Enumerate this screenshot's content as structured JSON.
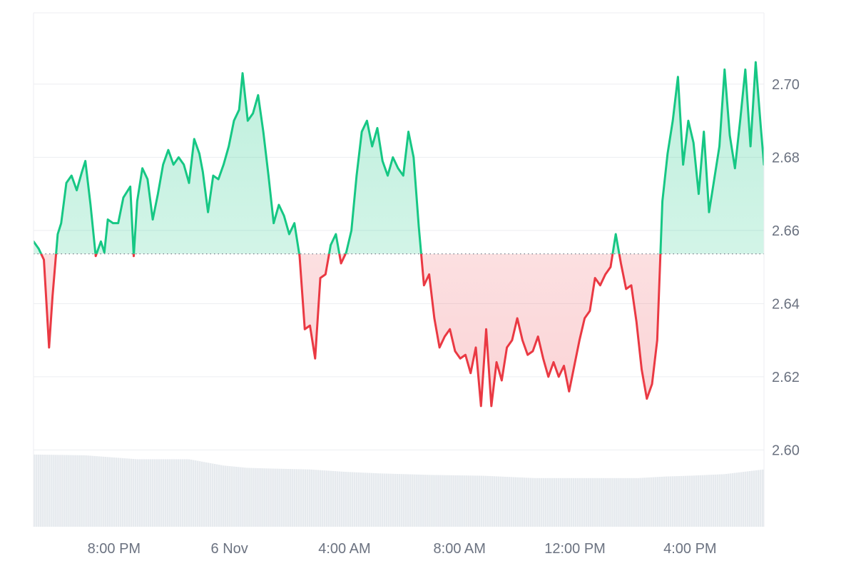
{
  "colors": {
    "up_line": "#16c784",
    "up_fill": "#16c784",
    "down_line": "#ea3943",
    "down_fill": "#ea3943",
    "baseline": "#6b7280",
    "grid": "#eceef1",
    "volume": "#e6eaee",
    "axis_text": "#6b7280"
  },
  "chart_data": {
    "type": "area",
    "grid": true,
    "baseline": 2.6536,
    "ylim": [
      2.579,
      2.7195
    ],
    "y_ticks": [
      "2.60",
      "2.62",
      "2.64",
      "2.66",
      "2.68",
      "2.70"
    ],
    "x_ticks": [
      "8:00 PM",
      "6 Nov",
      "4:00 AM",
      "8:00 AM",
      "12:00 PM",
      "4:00 PM"
    ],
    "x_tick_positions": [
      2.33,
      5.67,
      9,
      12.33,
      15.67,
      19
    ],
    "x_range": [
      0,
      21.14
    ],
    "price": {
      "x": [
        0,
        0.15,
        0.3,
        0.45,
        0.55,
        0.7,
        0.8,
        0.95,
        1.1,
        1.25,
        1.4,
        1.5,
        1.65,
        1.8,
        1.95,
        2.05,
        2.15,
        2.3,
        2.45,
        2.6,
        2.8,
        2.9,
        3.0,
        3.15,
        3.3,
        3.45,
        3.6,
        3.75,
        3.9,
        4.05,
        4.2,
        4.35,
        4.5,
        4.65,
        4.8,
        4.9,
        5.05,
        5.2,
        5.35,
        5.5,
        5.65,
        5.8,
        5.95,
        6.05,
        6.2,
        6.35,
        6.5,
        6.65,
        6.8,
        6.95,
        7.1,
        7.25,
        7.4,
        7.55,
        7.7,
        7.85,
        8.0,
        8.15,
        8.3,
        8.45,
        8.6,
        8.75,
        8.9,
        9.05,
        9.2,
        9.35,
        9.5,
        9.65,
        9.8,
        9.95,
        10.1,
        10.25,
        10.4,
        10.55,
        10.7,
        10.85,
        11.0,
        11.15,
        11.3,
        11.45,
        11.6,
        11.75,
        11.9,
        12.05,
        12.2,
        12.35,
        12.5,
        12.65,
        12.8,
        12.95,
        13.1,
        13.25,
        13.4,
        13.55,
        13.7,
        13.85,
        14.0,
        14.15,
        14.3,
        14.45,
        14.6,
        14.75,
        14.9,
        15.05,
        15.2,
        15.35,
        15.5,
        15.65,
        15.8,
        15.95,
        16.1,
        16.25,
        16.4,
        16.55,
        16.7,
        16.85,
        17.0,
        17.15,
        17.3,
        17.45,
        17.6,
        17.75,
        17.9,
        18.05,
        18.2,
        18.35,
        18.5,
        18.65,
        18.8,
        18.95,
        19.1,
        19.25,
        19.4,
        19.55,
        19.7,
        19.85,
        20.0,
        20.15,
        20.3,
        20.45,
        20.6,
        20.75,
        20.9,
        21.05,
        21.14
      ],
      "y": [
        2.657,
        2.655,
        2.652,
        2.628,
        2.642,
        2.659,
        2.662,
        2.673,
        2.675,
        2.671,
        2.676,
        2.679,
        2.667,
        2.653,
        2.657,
        2.654,
        2.663,
        2.662,
        2.662,
        2.669,
        2.672,
        2.653,
        2.668,
        2.677,
        2.674,
        2.663,
        2.67,
        2.678,
        2.682,
        2.678,
        2.68,
        2.678,
        2.673,
        2.685,
        2.681,
        2.676,
        2.665,
        2.675,
        2.674,
        2.678,
        2.683,
        2.69,
        2.693,
        2.703,
        2.69,
        2.692,
        2.697,
        2.687,
        2.675,
        2.662,
        2.667,
        2.664,
        2.659,
        2.662,
        2.653,
        2.633,
        2.634,
        2.625,
        2.647,
        2.648,
        2.656,
        2.659,
        2.651,
        2.654,
        2.66,
        2.675,
        2.687,
        2.69,
        2.683,
        2.688,
        2.679,
        2.675,
        2.68,
        2.677,
        2.675,
        2.687,
        2.68,
        2.661,
        2.645,
        2.648,
        2.636,
        2.628,
        2.631,
        2.633,
        2.627,
        2.625,
        2.626,
        2.621,
        2.628,
        2.612,
        2.633,
        2.612,
        2.624,
        2.619,
        2.628,
        2.63,
        2.636,
        2.63,
        2.626,
        2.627,
        2.631,
        2.625,
        2.62,
        2.624,
        2.62,
        2.623,
        2.616,
        2.623,
        2.63,
        2.636,
        2.638,
        2.647,
        2.645,
        2.648,
        2.65,
        2.659,
        2.651,
        2.644,
        2.645,
        2.635,
        2.622,
        2.614,
        2.618,
        2.63,
        2.668,
        2.681,
        2.69,
        2.702,
        2.678,
        2.69,
        2.684,
        2.67,
        2.687,
        2.665,
        2.674,
        2.683,
        2.704,
        2.686,
        2.677,
        2.69,
        2.704,
        2.683,
        2.706,
        2.688,
        2.678
      ]
    },
    "volume": {
      "x": [
        0,
        1.5,
        3.0,
        4.5,
        5.0,
        5.5,
        6.2,
        7.0,
        8.0,
        9.0,
        10.0,
        11.5,
        13.0,
        14.5,
        16.0,
        17.5,
        18.3,
        19.0,
        20.0,
        21.14
      ],
      "v": [
        0.92,
        0.91,
        0.86,
        0.86,
        0.82,
        0.78,
        0.75,
        0.74,
        0.73,
        0.7,
        0.68,
        0.66,
        0.65,
        0.62,
        0.62,
        0.62,
        0.64,
        0.65,
        0.67,
        0.73
      ]
    }
  }
}
